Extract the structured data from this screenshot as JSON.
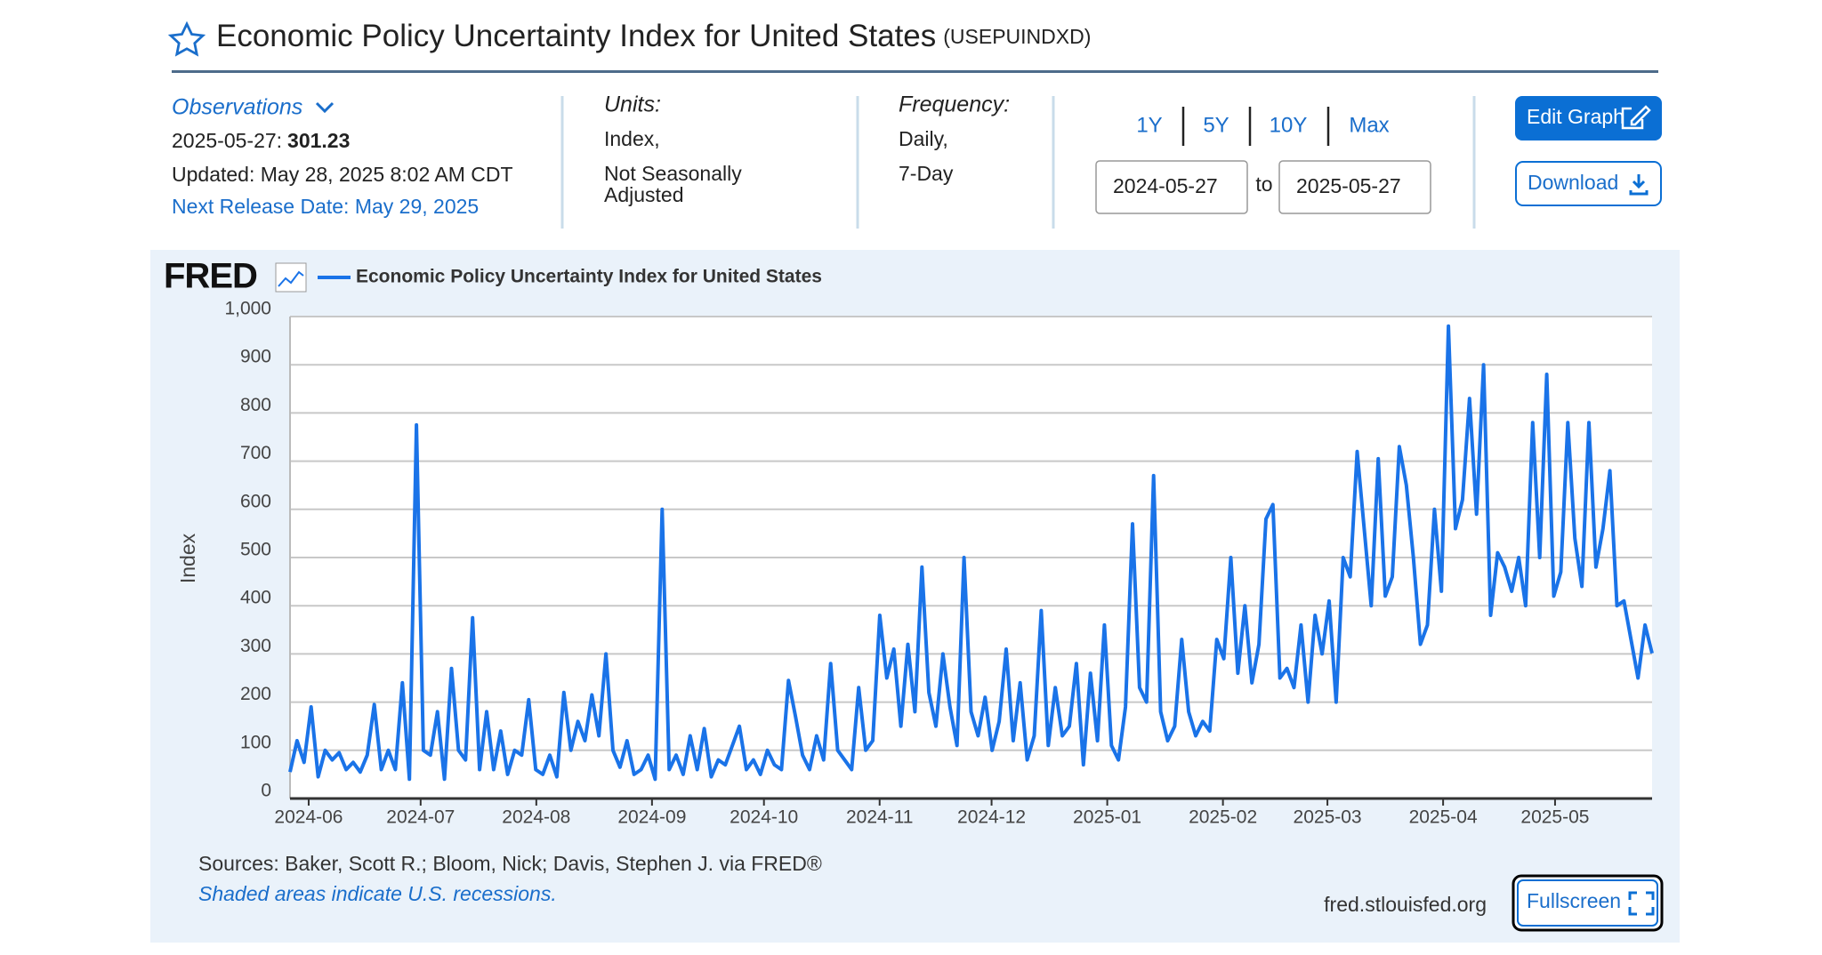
{
  "header": {
    "title": "Economic Policy Uncertainty Index for United States",
    "code": "(USEPUINDXD)"
  },
  "observations": {
    "label": "Observations",
    "date": "2025-05-27:",
    "value": "301.23",
    "updated": "Updated: May 28, 2025 8:02 AM CDT",
    "next_release": "Next Release Date: May 29, 2025"
  },
  "units": {
    "label": "Units:",
    "lines": [
      "Index,",
      "Not Seasonally",
      "Adjusted"
    ]
  },
  "frequency": {
    "label": "Frequency:",
    "lines": [
      "Daily,",
      "7-Day"
    ]
  },
  "ranges": [
    "1Y",
    "5Y",
    "10Y",
    "Max"
  ],
  "date_range": {
    "start": "2024-05-27",
    "to": "to",
    "end": "2025-05-27"
  },
  "buttons": {
    "edit": "Edit Graph",
    "download": "Download",
    "fullscreen": "Fullscreen"
  },
  "footer": {
    "logo": "FRED",
    "sources": "Sources: Baker, Scott R.; Bloom, Nick; Davis, Stephen J. via FRED®",
    "note": "Shaded areas indicate U.S. recessions.",
    "site": "fred.stlouisfed.org"
  },
  "chart_data": {
    "type": "line",
    "ylabel": "Index",
    "xlim": [
      "2024-05-27",
      "2025-05-27"
    ],
    "xticks": [
      "2024-06",
      "2024-07",
      "2024-08",
      "2024-09",
      "2024-10",
      "2024-11",
      "2024-12",
      "2025-01",
      "2025-02",
      "2025-03",
      "2025-04",
      "2025-05"
    ],
    "ylim": [
      0,
      1000
    ],
    "yticks": [
      0,
      100,
      200,
      300,
      400,
      500,
      600,
      700,
      800,
      900,
      {
        "value": 1000,
        "label": "1,000"
      }
    ],
    "grid": true,
    "series": [
      {
        "name": "Economic Policy Uncertainty Index for United States",
        "color": "#1a73e8",
        "values": [
          55,
          120,
          75,
          190,
          45,
          100,
          80,
          95,
          60,
          75,
          55,
          90,
          195,
          60,
          100,
          60,
          240,
          40,
          775,
          100,
          90,
          180,
          40,
          270,
          100,
          80,
          375,
          60,
          180,
          60,
          140,
          50,
          100,
          90,
          205,
          60,
          50,
          90,
          45,
          220,
          100,
          160,
          120,
          215,
          130,
          300,
          100,
          65,
          120,
          50,
          60,
          90,
          40,
          600,
          60,
          90,
          50,
          130,
          60,
          145,
          45,
          80,
          70,
          110,
          150,
          60,
          80,
          50,
          100,
          70,
          60,
          245,
          170,
          90,
          60,
          130,
          80,
          280,
          100,
          80,
          60,
          230,
          100,
          120,
          380,
          250,
          310,
          150,
          320,
          180,
          480,
          220,
          150,
          300,
          190,
          110,
          500,
          180,
          130,
          210,
          100,
          160,
          310,
          120,
          240,
          80,
          130,
          390,
          110,
          230,
          130,
          150,
          280,
          70,
          260,
          120,
          360,
          110,
          80,
          190,
          570,
          230,
          200,
          670,
          180,
          120,
          150,
          330,
          180,
          130,
          160,
          140,
          330,
          290,
          500,
          260,
          400,
          240,
          320,
          580,
          610,
          250,
          270,
          230,
          360,
          200,
          380,
          300,
          410,
          200,
          500,
          460,
          720,
          560,
          400,
          705,
          420,
          460,
          730,
          650,
          500,
          320,
          360,
          600,
          430,
          980,
          560,
          620,
          830,
          590,
          900,
          380,
          510,
          480,
          430,
          500,
          400,
          780,
          500,
          880,
          420,
          470,
          780,
          540,
          440,
          780,
          480,
          560,
          680,
          400,
          410,
          330,
          250,
          360,
          301.23
        ]
      }
    ]
  }
}
